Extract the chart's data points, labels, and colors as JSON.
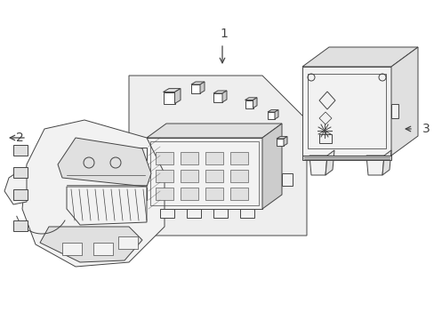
{
  "background_color": "#ffffff",
  "line_color": "#444444",
  "fill_white": "#ffffff",
  "fill_light": "#f2f2f2",
  "fill_medium": "#e0e0e0",
  "fill_dark": "#cccccc",
  "fill_box": "#ebebeb",
  "label1": "1",
  "label2": "2",
  "label3": "3",
  "figsize": [
    4.89,
    3.6
  ],
  "dpi": 100
}
